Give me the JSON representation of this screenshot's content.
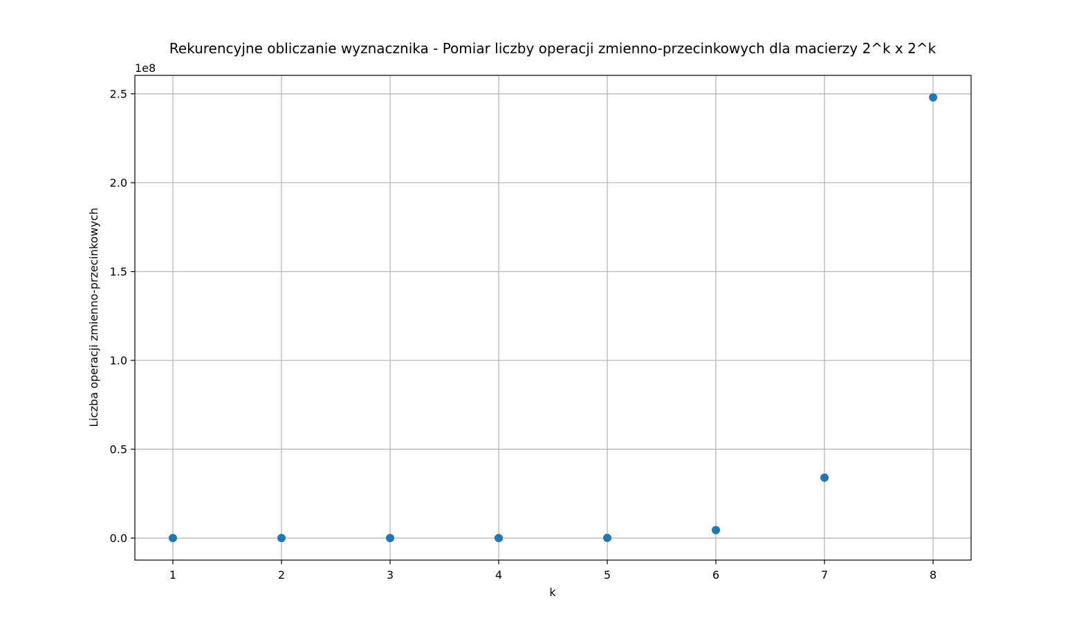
{
  "chart_data": {
    "type": "scatter",
    "title": "Rekurencyjne obliczanie wyznacznika - Pomiar liczby operacji zmienno-przecinkowych dla macierzy 2^k x 2^k",
    "xlabel": "k",
    "ylabel": "Liczba operacji zmienno-przecinkowych",
    "y_offset_text": "1e8",
    "y_scale_factor": 100000000,
    "x": [
      1,
      2,
      3,
      4,
      5,
      6,
      7,
      8
    ],
    "y": [
      8,
      60,
      500,
      7000,
      110000,
      4500000,
      34000000,
      248000000
    ],
    "xlim": [
      0.65,
      8.35
    ],
    "ylim": [
      -12400000,
      260400000
    ],
    "x_ticks": [
      1,
      2,
      3,
      4,
      5,
      6,
      7,
      8
    ],
    "x_tick_labels": [
      "1",
      "2",
      "3",
      "4",
      "5",
      "6",
      "7",
      "8"
    ],
    "y_ticks": [
      0,
      0.5,
      1.0,
      1.5,
      2.0,
      2.5
    ],
    "y_tick_labels": [
      "0.0",
      "0.5",
      "1.0",
      "1.5",
      "2.0",
      "2.5"
    ],
    "grid": true,
    "marker_color": "#1f77b4",
    "grid_color": "#b0b0b0"
  }
}
